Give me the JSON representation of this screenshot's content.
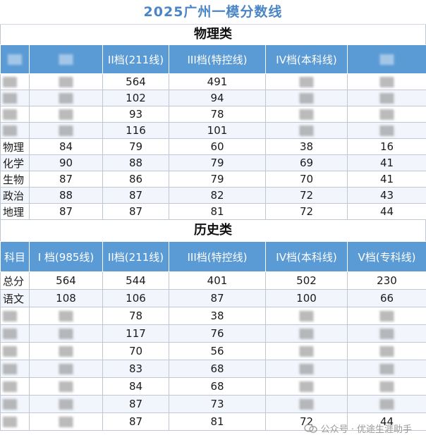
{
  "title": "2025广州一模分数线",
  "physics": {
    "section_title": "物理类",
    "headers": [
      "",
      "",
      "II档(211线)",
      "III档(特控线)",
      "IV档(本科线)",
      ""
    ],
    "rows": [
      {
        "subject": "",
        "values": [
          "",
          "564",
          "491",
          "",
          ""
        ]
      },
      {
        "subject": "",
        "values": [
          "",
          "102",
          "94",
          "",
          ""
        ]
      },
      {
        "subject": "",
        "values": [
          "",
          "93",
          "78",
          "",
          ""
        ]
      },
      {
        "subject": "",
        "values": [
          "",
          "116",
          "101",
          "",
          ""
        ]
      },
      {
        "subject": "物理",
        "values": [
          "84",
          "79",
          "60",
          "38",
          "16"
        ]
      },
      {
        "subject": "化学",
        "values": [
          "90",
          "88",
          "79",
          "69",
          "41"
        ]
      },
      {
        "subject": "生物",
        "values": [
          "87",
          "86",
          "79",
          "70",
          "41"
        ]
      },
      {
        "subject": "政治",
        "values": [
          "88",
          "87",
          "82",
          "72",
          "43"
        ]
      },
      {
        "subject": "地理",
        "values": [
          "87",
          "87",
          "81",
          "72",
          "44"
        ]
      }
    ]
  },
  "history": {
    "section_title": "历史类",
    "headers": [
      "科目",
      "I 档(985线)",
      "II档(211线)",
      "III档(特控线)",
      "IV档(本科线)",
      "V档(专科线)"
    ],
    "rows": [
      {
        "subject": "总分",
        "values": [
          "564",
          "544",
          "401",
          "502",
          "230"
        ]
      },
      {
        "subject": "语文",
        "values": [
          "108",
          "106",
          "87",
          "100",
          "66"
        ]
      },
      {
        "subject": "",
        "values": [
          "",
          "78",
          "38",
          "",
          ""
        ]
      },
      {
        "subject": "",
        "values": [
          "",
          "117",
          "76",
          "",
          ""
        ]
      },
      {
        "subject": "",
        "values": [
          "",
          "70",
          "56",
          "",
          ""
        ]
      },
      {
        "subject": "",
        "values": [
          "",
          "83",
          "68",
          "",
          ""
        ]
      },
      {
        "subject": "",
        "values": [
          "",
          "84",
          "68",
          "",
          ""
        ]
      },
      {
        "subject": "",
        "values": [
          "",
          "87",
          "73",
          "",
          ""
        ]
      },
      {
        "subject": "",
        "values": [
          "",
          "87",
          "81",
          "72",
          "44"
        ]
      }
    ]
  },
  "watermark": "公众号 · 优途生涯助手",
  "blur_placeholder": "▒▒"
}
